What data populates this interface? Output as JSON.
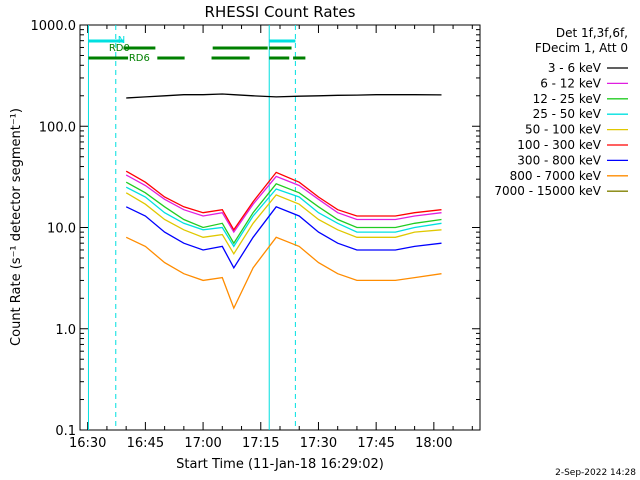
{
  "chart_data": {
    "type": "line",
    "title": "RHESSI Count Rates",
    "xlabel": "Start Time (11-Jan-18 16:29:02)",
    "ylabel": "Count Rate (s⁻¹ detector segment⁻¹)",
    "y_scale": "log",
    "ylim": [
      0.1,
      1000
    ],
    "xlim": [
      "16:28",
      "18:12"
    ],
    "x_tick_labels": [
      "16:30",
      "16:45",
      "17:00",
      "17:15",
      "17:30",
      "17:45",
      "18:00"
    ],
    "y_tick_labels": [
      "0.1",
      "1.0",
      "10.0",
      "100.0",
      "1000.0"
    ],
    "x_tick_values_min": [
      990,
      1005,
      1020,
      1035,
      1050,
      1065,
      1080
    ],
    "y_tick_values": [
      0.1,
      1,
      10,
      100,
      1000
    ],
    "legend_header": [
      "Det 1f,3f,6f,",
      "FDecim 1, Att 0"
    ],
    "legend_placement": "right",
    "series": [
      {
        "name": "3 - 6 keV",
        "color": "#000000",
        "values": [
          190,
          195,
          200,
          205,
          205,
          208,
          205,
          200,
          195,
          198,
          200,
          202,
          203,
          205,
          205,
          205,
          204
        ]
      },
      {
        "name": "6 - 12 keV",
        "color": "#e01ee0",
        "values": [
          33,
          26,
          19,
          15,
          13,
          14,
          9,
          17,
          32,
          26,
          19,
          14,
          12,
          12,
          12,
          13,
          14
        ]
      },
      {
        "name": "12 - 25 keV",
        "color": "#22cc22",
        "values": [
          28,
          22,
          16,
          12,
          10,
          11,
          7,
          14,
          27,
          22,
          16,
          12,
          10,
          10,
          10,
          11,
          12
        ]
      },
      {
        "name": "25 - 50 keV",
        "color": "#00e0e0",
        "values": [
          25,
          20,
          14,
          11,
          9.5,
          10,
          6.5,
          13,
          24,
          20,
          14,
          11,
          9,
          9,
          9,
          10,
          11
        ]
      },
      {
        "name": "50 - 100 keV",
        "color": "#e0c800",
        "values": [
          22,
          17,
          12,
          9.5,
          8,
          8.5,
          5.5,
          11,
          21,
          17,
          12,
          9.5,
          8,
          8,
          8,
          9,
          9.5
        ]
      },
      {
        "name": "100 - 300 keV",
        "color": "#ff0000",
        "values": [
          36,
          28,
          20,
          16,
          14,
          15,
          9.5,
          18,
          35,
          28,
          20,
          15,
          13,
          13,
          13,
          14,
          15
        ]
      },
      {
        "name": "300 - 800 keV",
        "color": "#0000ff",
        "values": [
          16,
          13,
          9,
          7,
          6,
          6.5,
          4,
          8,
          16,
          13,
          9,
          7,
          6,
          6,
          6,
          6.5,
          7
        ]
      },
      {
        "name": "800 - 7000 keV",
        "color": "#ff8c00",
        "values": [
          8,
          6.5,
          4.5,
          3.5,
          3,
          3.2,
          1.6,
          4,
          8,
          6.5,
          4.5,
          3.5,
          3,
          3,
          3,
          3.2,
          3.5
        ]
      },
      {
        "name": "7000 - 15000 keV",
        "color": "#808000",
        "values": []
      }
    ],
    "x_minutes": [
      1000,
      1005,
      1010,
      1015,
      1020,
      1025,
      1028,
      1033,
      1039,
      1045,
      1050,
      1055,
      1060,
      1065,
      1070,
      1075,
      1082
    ],
    "vertical_lines": [
      {
        "minute": 990.2,
        "style": "solid",
        "color": "#00e0e0"
      },
      {
        "minute": 997.3,
        "style": "dashed",
        "color": "#00e0e0"
      },
      {
        "minute": 1037.2,
        "style": "solid",
        "color": "#00e0e0"
      },
      {
        "minute": 1044.0,
        "style": "dashed",
        "color": "#00e0e0"
      }
    ],
    "annotations": {
      "night_label": "N",
      "rd0_label": "RD0",
      "rd6_label": "RD6"
    },
    "night_intervals": [
      [
        990.2,
        999.3
      ],
      [
        1037.2,
        1044.0
      ]
    ],
    "rd0_intervals": [
      [
        999.3,
        1007.6
      ],
      [
        1022.5,
        1036.8
      ],
      [
        1037.2,
        1043.0
      ]
    ],
    "rd6_intervals": [
      [
        990.2,
        1000.5
      ],
      [
        1008.1,
        1015.2
      ],
      [
        1022.2,
        1032.1
      ],
      [
        1037.2,
        1042.4
      ],
      [
        1043.4,
        1046.6
      ]
    ],
    "footer_timestamp": "2-Sep-2022 14:28",
    "grid": false
  }
}
